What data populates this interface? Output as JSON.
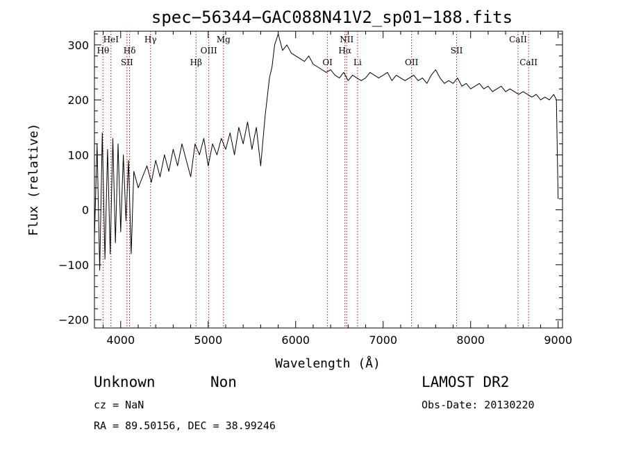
{
  "chart_data": {
    "type": "line",
    "title": "spec−56344−GAC088N41V2_sp01−188.fits",
    "xlabel": "Wavelength (Å)",
    "ylabel": "Flux (relative)",
    "xlim": [
      3700,
      9050
    ],
    "ylim": [
      -215,
      325
    ],
    "xticks": [
      4000,
      5000,
      6000,
      7000,
      8000,
      9000
    ],
    "xtick_labels": [
      "4000",
      "5000",
      "6000",
      "7000",
      "8000",
      "9000"
    ],
    "yticks": [
      -200,
      -100,
      0,
      100,
      200,
      300
    ],
    "ytick_labels": [
      "−200",
      "−100",
      "0",
      "100",
      "200",
      "300"
    ],
    "grid": false,
    "series": [
      {
        "color": "#000000",
        "x": [
          3700,
          3730,
          3760,
          3790,
          3820,
          3850,
          3880,
          3910,
          3940,
          3970,
          4000,
          4030,
          4060,
          4090,
          4120,
          4150,
          4200,
          4250,
          4300,
          4350,
          4400,
          4450,
          4500,
          4550,
          4600,
          4650,
          4700,
          4750,
          4800,
          4850,
          4900,
          4950,
          5000,
          5050,
          5100,
          5150,
          5200,
          5250,
          5300,
          5350,
          5400,
          5450,
          5500,
          5550,
          5600,
          5650,
          5700,
          5730,
          5760,
          5800,
          5850,
          5900,
          5950,
          6000,
          6050,
          6100,
          6150,
          6200,
          6250,
          6300,
          6350,
          6400,
          6450,
          6500,
          6550,
          6600,
          6650,
          6700,
          6750,
          6800,
          6850,
          6900,
          6950,
          7000,
          7050,
          7100,
          7150,
          7200,
          7250,
          7300,
          7350,
          7400,
          7450,
          7500,
          7550,
          7600,
          7650,
          7700,
          7750,
          7800,
          7850,
          7900,
          7950,
          8000,
          8050,
          8100,
          8150,
          8200,
          8250,
          8300,
          8350,
          8400,
          8450,
          8500,
          8550,
          8600,
          8650,
          8700,
          8750,
          8800,
          8850,
          8900,
          8950,
          8980,
          9000
        ],
        "y": [
          -50,
          120,
          -110,
          140,
          -90,
          110,
          -80,
          130,
          -60,
          120,
          -40,
          100,
          -20,
          90,
          -80,
          70,
          40,
          60,
          80,
          50,
          90,
          60,
          100,
          70,
          110,
          80,
          120,
          90,
          60,
          120,
          100,
          130,
          80,
          120,
          100,
          130,
          110,
          140,
          100,
          150,
          120,
          160,
          110,
          150,
          80,
          170,
          240,
          260,
          300,
          320,
          290,
          300,
          285,
          280,
          275,
          270,
          280,
          265,
          260,
          255,
          250,
          255,
          245,
          240,
          250,
          235,
          245,
          240,
          235,
          240,
          250,
          245,
          240,
          245,
          250,
          235,
          245,
          240,
          235,
          240,
          245,
          235,
          240,
          230,
          245,
          255,
          240,
          230,
          235,
          230,
          240,
          225,
          230,
          220,
          225,
          230,
          220,
          225,
          215,
          220,
          225,
          215,
          220,
          215,
          210,
          215,
          210,
          205,
          210,
          200,
          205,
          200,
          210,
          200,
          20
        ]
      }
    ],
    "annotations": [
      {
        "label": "HeI",
        "x": 3889,
        "row": 1
      },
      {
        "label": "Hθ",
        "x": 3798,
        "row": 2
      },
      {
        "label": "Hδ",
        "x": 4102,
        "row": 2
      },
      {
        "label": "SII",
        "x": 4072,
        "row": 3
      },
      {
        "label": "Hγ",
        "x": 4341,
        "row": 1
      },
      {
        "label": "Hβ",
        "x": 4861,
        "row": 3
      },
      {
        "label": "OIII",
        "x": 5007,
        "row": 2
      },
      {
        "label": "Mg",
        "x": 5175,
        "row": 1
      },
      {
        "label": "OI",
        "x": 6364,
        "row": 3
      },
      {
        "label": "NII",
        "x": 6583,
        "row": 1
      },
      {
        "label": "Hα",
        "x": 6563,
        "row": 2
      },
      {
        "label": "Li",
        "x": 6708,
        "row": 3
      },
      {
        "label": "OII",
        "x": 7325,
        "row": 3
      },
      {
        "label": "SII",
        "x": 7840,
        "row": 2
      },
      {
        "label": "CaII",
        "x": 8542,
        "row": 1
      },
      {
        "label": "CaII",
        "x": 8662,
        "row": 3
      }
    ]
  },
  "footer": {
    "object_class": "Unknown",
    "object_subclass": "Non",
    "redshift": "cz = NaN",
    "coords": "RA =  89.50156, DEC =  38.99246",
    "survey": "LAMOST DR2",
    "obs_date": "Obs-Date: 20130220"
  }
}
